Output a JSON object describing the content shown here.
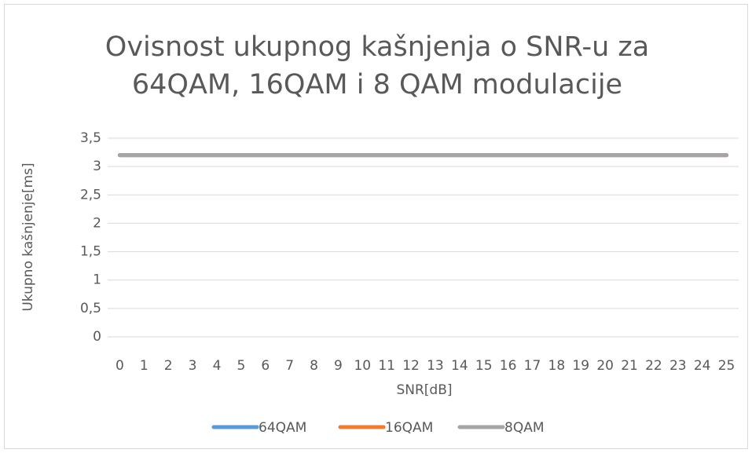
{
  "chart_data": {
    "type": "line",
    "title": "Ovisnost ukupnog kašnjenja o SNR-u za 64QAM, 16QAM i 8 QAM modulacije",
    "xlabel": "SNR[dB]",
    "ylabel": "Ukupno kašnjenje[ms]",
    "categories": [
      "0",
      "1",
      "2",
      "3",
      "4",
      "5",
      "6",
      "7",
      "8",
      "9",
      "10",
      "11",
      "12",
      "13",
      "14",
      "15",
      "16",
      "17",
      "18",
      "19",
      "20",
      "21",
      "22",
      "23",
      "24",
      "25"
    ],
    "series": [
      {
        "name": "64QAM",
        "color": "#5b9bd5",
        "values": [
          3.2,
          3.2,
          3.2,
          3.2,
          3.2,
          3.2,
          3.2,
          3.2,
          3.2,
          3.2,
          3.2,
          3.2,
          3.2,
          3.2,
          3.2,
          3.2,
          3.2,
          3.2,
          3.2,
          3.2,
          3.2,
          3.2,
          3.2,
          3.2,
          3.2,
          3.2
        ]
      },
      {
        "name": "16QAM",
        "color": "#ed7d31",
        "values": [
          3.2,
          3.2,
          3.2,
          3.2,
          3.2,
          3.2,
          3.2,
          3.2,
          3.2,
          3.2,
          3.2,
          3.2,
          3.2,
          3.2,
          3.2,
          3.2,
          3.2,
          3.2,
          3.2,
          3.2,
          3.2,
          3.2,
          3.2,
          3.2,
          3.2,
          3.2
        ]
      },
      {
        "name": "8QAM",
        "color": "#a5a5a5",
        "values": [
          3.2,
          3.2,
          3.2,
          3.2,
          3.2,
          3.2,
          3.2,
          3.2,
          3.2,
          3.2,
          3.2,
          3.2,
          3.2,
          3.2,
          3.2,
          3.2,
          3.2,
          3.2,
          3.2,
          3.2,
          3.2,
          3.2,
          3.2,
          3.2,
          3.2,
          3.2
        ]
      }
    ],
    "ylim": [
      0,
      3.5
    ],
    "yticks": [
      0,
      {
        "value": 0.5,
        "label": "0,5"
      },
      1,
      {
        "value": 1.5,
        "label": "1,5"
      },
      2,
      {
        "value": 2.5,
        "label": "2,5"
      },
      3,
      {
        "value": 3.5,
        "label": "3,5"
      }
    ],
    "grid": true,
    "legend": "bottom"
  }
}
